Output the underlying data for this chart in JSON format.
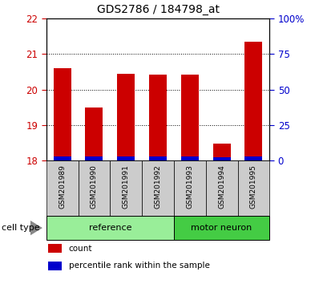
{
  "title": "GDS2786 / 184798_at",
  "samples": [
    "GSM201989",
    "GSM201990",
    "GSM201991",
    "GSM201992",
    "GSM201993",
    "GSM201994",
    "GSM201995"
  ],
  "count_values": [
    20.6,
    19.5,
    20.45,
    20.42,
    20.42,
    18.48,
    21.35
  ],
  "percentile_values": [
    3.0,
    3.0,
    3.0,
    3.0,
    3.0,
    2.5,
    3.0
  ],
  "ylim_left": [
    18,
    22
  ],
  "ylim_right": [
    0,
    100
  ],
  "yticks_left": [
    18,
    19,
    20,
    21,
    22
  ],
  "yticks_right": [
    0,
    25,
    50,
    75,
    100
  ],
  "ytick_labels_right": [
    "0",
    "25",
    "50",
    "75",
    "100%"
  ],
  "bar_width": 0.55,
  "count_color": "#cc0000",
  "percentile_color": "#0000cc",
  "groups": [
    {
      "label": "reference",
      "indices": [
        0,
        1,
        2,
        3
      ],
      "color": "#99ee99"
    },
    {
      "label": "motor neuron",
      "indices": [
        4,
        5,
        6
      ],
      "color": "#44cc44"
    }
  ],
  "group_label": "cell type",
  "legend_items": [
    {
      "label": "count",
      "color": "#cc0000"
    },
    {
      "label": "percentile rank within the sample",
      "color": "#0000cc"
    }
  ],
  "tick_color_left": "#cc0000",
  "tick_color_right": "#0000cc",
  "grid_color": "#000000",
  "label_box_color": "#cccccc"
}
